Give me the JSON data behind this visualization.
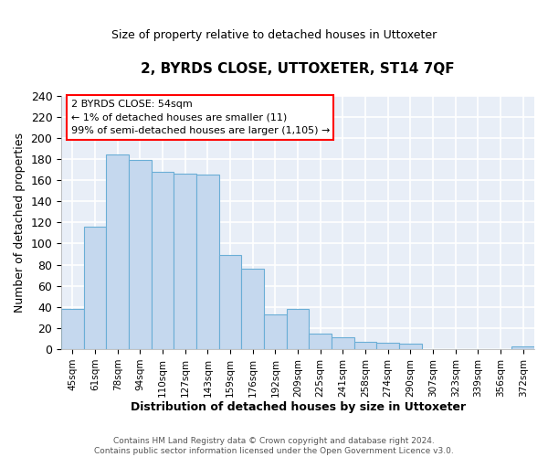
{
  "title": "2, BYRDS CLOSE, UTTOXETER, ST14 7QF",
  "subtitle": "Size of property relative to detached houses in Uttoxeter",
  "xlabel": "Distribution of detached houses by size in Uttoxeter",
  "ylabel": "Number of detached properties",
  "bar_labels": [
    "45sqm",
    "61sqm",
    "78sqm",
    "94sqm",
    "110sqm",
    "127sqm",
    "143sqm",
    "159sqm",
    "176sqm",
    "192sqm",
    "209sqm",
    "225sqm",
    "241sqm",
    "258sqm",
    "274sqm",
    "290sqm",
    "307sqm",
    "323sqm",
    "339sqm",
    "356sqm",
    "372sqm"
  ],
  "bar_values": [
    38,
    116,
    184,
    179,
    168,
    166,
    165,
    89,
    76,
    33,
    38,
    15,
    11,
    7,
    6,
    5,
    0,
    0,
    0,
    0,
    3
  ],
  "bar_color": "#c5d8ee",
  "bar_edge_color": "#6aaed6",
  "ylim": [
    0,
    240
  ],
  "yticks": [
    0,
    20,
    40,
    60,
    80,
    100,
    120,
    140,
    160,
    180,
    200,
    220,
    240
  ],
  "annotation_box_text_line1": "2 BYRDS CLOSE: 54sqm",
  "annotation_box_text_line2": "← 1% of detached houses are smaller (11)",
  "annotation_box_text_line3": "99% of semi-detached houses are larger (1,105) →",
  "annotation_box_color": "white",
  "annotation_box_edge_color": "red",
  "footer_line1": "Contains HM Land Registry data © Crown copyright and database right 2024.",
  "footer_line2": "Contains public sector information licensed under the Open Government Licence v3.0.",
  "plot_bg_color": "#e8eef7",
  "fig_bg_color": "#ffffff",
  "grid_color": "#ffffff",
  "title_fontsize": 11,
  "subtitle_fontsize": 9
}
